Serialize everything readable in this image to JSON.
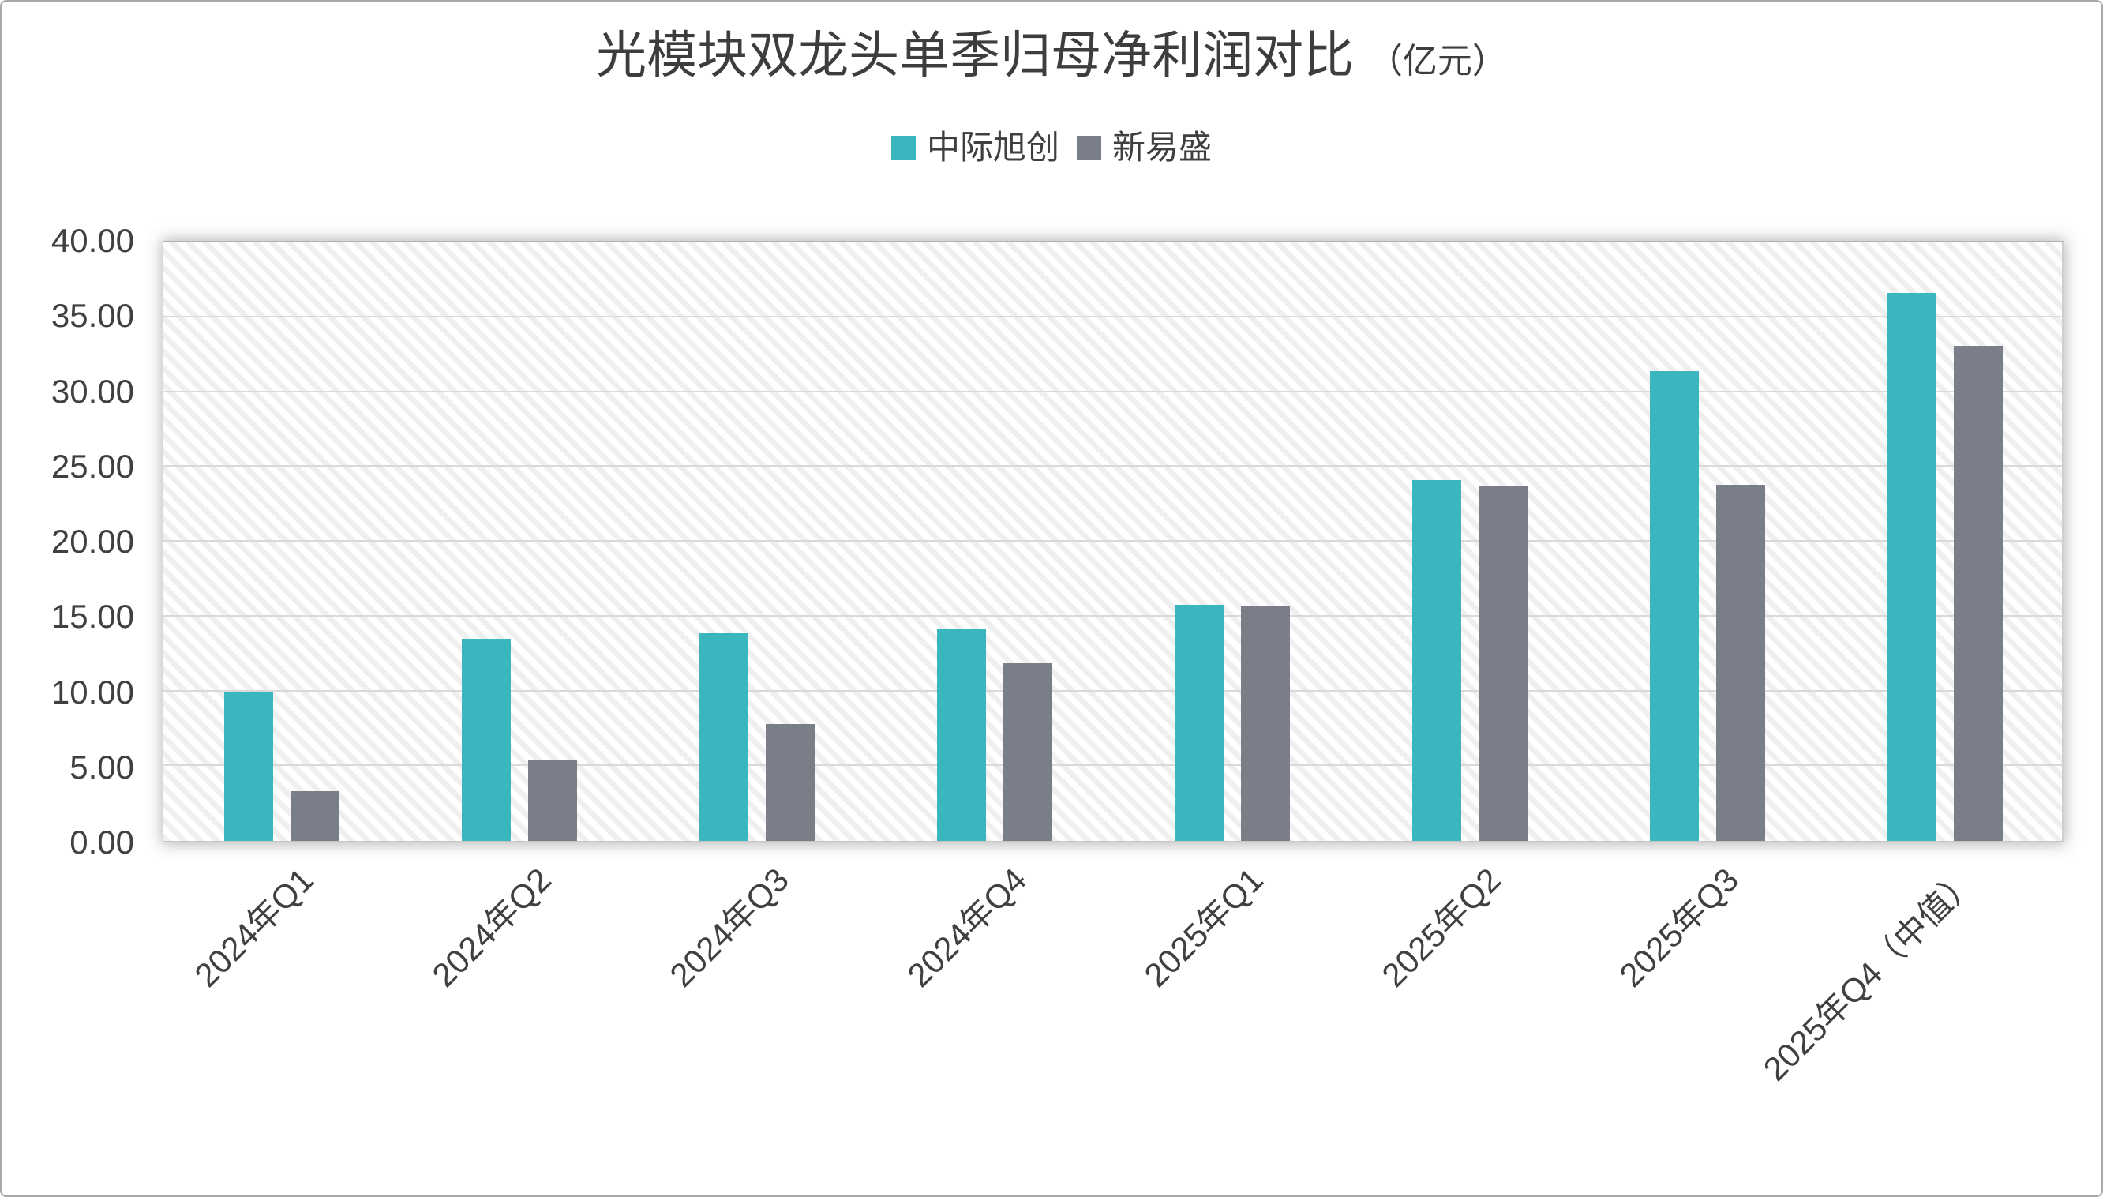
{
  "title": {
    "main": "光模块双龙头单季归母净利润对比",
    "unit": "（亿元）"
  },
  "chart_data": {
    "type": "bar",
    "title": "光模块双龙头单季归母净利润对比（亿元）",
    "categories": [
      "2024年Q1",
      "2024年Q2",
      "2024年Q3",
      "2024年Q4",
      "2025年Q1",
      "2025年Q2",
      "2025年Q3",
      "2025年Q4（中值）"
    ],
    "series": [
      {
        "name": "中际旭创",
        "color": "#3CB6BE",
        "values": [
          10.0,
          13.5,
          13.9,
          14.2,
          15.8,
          24.1,
          31.4,
          36.6
        ]
      },
      {
        "name": "新易盛",
        "color": "#7A7E88",
        "values": [
          3.3,
          5.4,
          7.8,
          11.9,
          15.7,
          23.7,
          23.8,
          33.1
        ]
      }
    ],
    "ylabel": "",
    "xlabel": "",
    "ylim": [
      0,
      40
    ],
    "ytick_step": 5,
    "yticks": [
      "0.00",
      "5.00",
      "10.00",
      "15.00",
      "20.00",
      "25.00",
      "30.00",
      "35.00",
      "40.00"
    ],
    "grid": "horizontal",
    "legend_position": "top-center",
    "xlabel_rotation_deg": 45,
    "plot_background": "diagonal-hatch",
    "colors": {
      "gridline": "#d9d9d9",
      "axis_text": "#404040",
      "title_text": "#3d3d3d",
      "hatch_stripe": "#efefef"
    }
  }
}
